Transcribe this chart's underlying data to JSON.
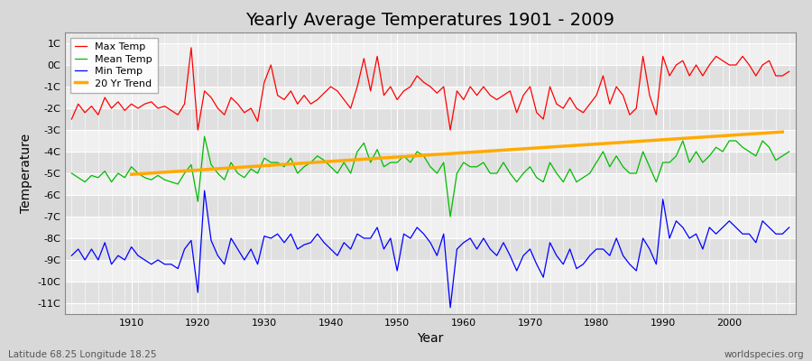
{
  "title": "Yearly Average Temperatures 1901 - 2009",
  "xlabel": "Year",
  "ylabel": "Temperature",
  "subtitle_left": "Latitude 68.25 Longitude 18.25",
  "subtitle_right": "worldspecies.org",
  "years": [
    1901,
    1902,
    1903,
    1904,
    1905,
    1906,
    1907,
    1908,
    1909,
    1910,
    1911,
    1912,
    1913,
    1914,
    1915,
    1916,
    1917,
    1918,
    1919,
    1920,
    1921,
    1922,
    1923,
    1924,
    1925,
    1926,
    1927,
    1928,
    1929,
    1930,
    1931,
    1932,
    1933,
    1934,
    1935,
    1936,
    1937,
    1938,
    1939,
    1940,
    1941,
    1942,
    1943,
    1944,
    1945,
    1946,
    1947,
    1948,
    1949,
    1950,
    1951,
    1952,
    1953,
    1954,
    1955,
    1956,
    1957,
    1958,
    1959,
    1960,
    1961,
    1962,
    1963,
    1964,
    1965,
    1966,
    1967,
    1968,
    1969,
    1970,
    1971,
    1972,
    1973,
    1974,
    1975,
    1976,
    1977,
    1978,
    1979,
    1980,
    1981,
    1982,
    1983,
    1984,
    1985,
    1986,
    1987,
    1988,
    1989,
    1990,
    1991,
    1992,
    1993,
    1994,
    1995,
    1996,
    1997,
    1998,
    1999,
    2000,
    2001,
    2002,
    2003,
    2004,
    2005,
    2006,
    2007,
    2008,
    2009
  ],
  "max_temp": [
    -2.5,
    -1.8,
    -2.2,
    -1.9,
    -2.3,
    -1.5,
    -2.0,
    -1.7,
    -2.1,
    -1.8,
    -2.0,
    -1.8,
    -1.7,
    -2.0,
    -1.9,
    -2.1,
    -2.3,
    -1.8,
    0.8,
    -3.0,
    -1.2,
    -1.5,
    -2.0,
    -2.3,
    -1.5,
    -1.8,
    -2.2,
    -2.0,
    -2.6,
    -0.8,
    0.0,
    -1.4,
    -1.6,
    -1.2,
    -1.8,
    -1.4,
    -1.8,
    -1.6,
    -1.3,
    -1.0,
    -1.2,
    -1.6,
    -2.0,
    -1.0,
    0.3,
    -1.2,
    0.4,
    -1.4,
    -1.0,
    -1.6,
    -1.2,
    -1.0,
    -0.5,
    -0.8,
    -1.0,
    -1.3,
    -1.0,
    -3.0,
    -1.2,
    -1.6,
    -1.0,
    -1.4,
    -1.0,
    -1.4,
    -1.6,
    -1.4,
    -1.2,
    -2.2,
    -1.4,
    -1.0,
    -2.2,
    -2.5,
    -1.0,
    -1.8,
    -2.0,
    -1.5,
    -2.0,
    -2.2,
    -1.8,
    -1.4,
    -0.5,
    -1.8,
    -1.0,
    -1.4,
    -2.3,
    -2.0,
    0.4,
    -1.4,
    -2.3,
    0.4,
    -0.5,
    0.0,
    0.2,
    -0.5,
    0.0,
    -0.5,
    0.0,
    0.4,
    0.2,
    0.0,
    0.0,
    0.4,
    0.0,
    -0.5,
    0.0,
    0.2,
    -0.5,
    -0.5,
    -0.3
  ],
  "mean_temp": [
    -5.0,
    -5.2,
    -5.4,
    -5.1,
    -5.2,
    -4.9,
    -5.4,
    -5.0,
    -5.2,
    -4.7,
    -5.0,
    -5.2,
    -5.3,
    -5.1,
    -5.3,
    -5.4,
    -5.5,
    -5.0,
    -4.6,
    -6.3,
    -3.3,
    -4.6,
    -5.0,
    -5.3,
    -4.5,
    -5.0,
    -5.2,
    -4.8,
    -5.0,
    -4.3,
    -4.5,
    -4.5,
    -4.7,
    -4.3,
    -5.0,
    -4.7,
    -4.5,
    -4.2,
    -4.4,
    -4.7,
    -5.0,
    -4.5,
    -5.0,
    -4.0,
    -3.6,
    -4.5,
    -3.9,
    -4.7,
    -4.5,
    -4.5,
    -4.2,
    -4.5,
    -4.0,
    -4.2,
    -4.7,
    -5.0,
    -4.5,
    -7.0,
    -5.0,
    -4.5,
    -4.7,
    -4.7,
    -4.5,
    -5.0,
    -5.0,
    -4.5,
    -5.0,
    -5.4,
    -5.0,
    -4.7,
    -5.2,
    -5.4,
    -4.5,
    -5.0,
    -5.4,
    -4.8,
    -5.4,
    -5.2,
    -5.0,
    -4.5,
    -4.0,
    -4.7,
    -4.2,
    -4.7,
    -5.0,
    -5.0,
    -4.0,
    -4.7,
    -5.4,
    -4.5,
    -4.5,
    -4.2,
    -3.5,
    -4.5,
    -4.0,
    -4.5,
    -4.2,
    -3.8,
    -4.0,
    -3.5,
    -3.5,
    -3.8,
    -4.0,
    -4.2,
    -3.5,
    -3.8,
    -4.4,
    -4.2,
    -4.0
  ],
  "min_temp": [
    -8.8,
    -8.5,
    -9.0,
    -8.5,
    -9.0,
    -8.2,
    -9.2,
    -8.8,
    -9.0,
    -8.4,
    -8.8,
    -9.0,
    -9.2,
    -9.0,
    -9.2,
    -9.2,
    -9.4,
    -8.5,
    -8.1,
    -10.5,
    -5.8,
    -8.1,
    -8.8,
    -9.2,
    -8.0,
    -8.5,
    -9.0,
    -8.5,
    -9.2,
    -7.9,
    -8.0,
    -7.8,
    -8.2,
    -7.8,
    -8.5,
    -8.3,
    -8.2,
    -7.8,
    -8.2,
    -8.5,
    -8.8,
    -8.2,
    -8.5,
    -7.8,
    -8.0,
    -8.0,
    -7.5,
    -8.5,
    -8.0,
    -9.5,
    -7.8,
    -8.0,
    -7.5,
    -7.8,
    -8.2,
    -8.8,
    -7.8,
    -11.2,
    -8.5,
    -8.2,
    -8.0,
    -8.5,
    -8.0,
    -8.5,
    -8.8,
    -8.2,
    -8.8,
    -9.5,
    -8.8,
    -8.5,
    -9.2,
    -9.8,
    -8.2,
    -8.8,
    -9.2,
    -8.5,
    -9.4,
    -9.2,
    -8.8,
    -8.5,
    -8.5,
    -8.8,
    -8.0,
    -8.8,
    -9.2,
    -9.5,
    -8.0,
    -8.5,
    -9.2,
    -6.2,
    -8.0,
    -7.2,
    -7.5,
    -8.0,
    -7.8,
    -8.5,
    -7.5,
    -7.8,
    -7.5,
    -7.2,
    -7.5,
    -7.8,
    -7.8,
    -8.2,
    -7.2,
    -7.5,
    -7.8,
    -7.8,
    -7.5
  ],
  "trend_start_year": 1910,
  "trend_end_year": 2008,
  "trend_values": [
    -5.05,
    -5.03,
    -5.01,
    -4.99,
    -4.97,
    -4.95,
    -4.93,
    -4.91,
    -4.89,
    -4.87,
    -4.85,
    -4.83,
    -4.81,
    -4.79,
    -4.77,
    -4.75,
    -4.73,
    -4.71,
    -4.69,
    -4.67,
    -4.65,
    -4.63,
    -4.61,
    -4.59,
    -4.57,
    -4.55,
    -4.53,
    -4.51,
    -4.49,
    -4.47,
    -4.45,
    -4.43,
    -4.41,
    -4.39,
    -4.37,
    -4.35,
    -4.33,
    -4.31,
    -4.29,
    -4.27,
    -4.25,
    -4.23,
    -4.21,
    -4.19,
    -4.17,
    -4.15,
    -4.13,
    -4.11,
    -4.09,
    -4.07,
    -4.05,
    -4.03,
    -4.01,
    -3.99,
    -3.97,
    -3.95,
    -3.93,
    -3.91,
    -3.89,
    -3.87,
    -3.85,
    -3.83,
    -3.81,
    -3.79,
    -3.77,
    -3.75,
    -3.73,
    -3.71,
    -3.69,
    -3.67,
    -3.65,
    -3.63,
    -3.61,
    -3.59,
    -3.57,
    -3.55,
    -3.53,
    -3.51,
    -3.49,
    -3.47,
    -3.45,
    -3.43,
    -3.41,
    -3.39,
    -3.37,
    -3.35,
    -3.33,
    -3.31,
    -3.29,
    -3.27,
    -3.25,
    -3.23,
    -3.21,
    -3.19,
    -3.17,
    -3.15,
    -3.13,
    -3.11,
    -3.09
  ],
  "ylim": [
    -11.5,
    1.5
  ],
  "yticks": [
    1,
    0,
    -1,
    -2,
    -3,
    -4,
    -5,
    -6,
    -7,
    -8,
    -9,
    -10,
    -11
  ],
  "ytick_labels": [
    "1C",
    "0C",
    "-1C",
    "-2C",
    "-3C",
    "-4C",
    "-5C",
    "-6C",
    "-7C",
    "-8C",
    "-9C",
    "-10C",
    "-11C"
  ],
  "xlim": [
    1900,
    2010
  ],
  "xticks": [
    1910,
    1920,
    1930,
    1940,
    1950,
    1960,
    1970,
    1980,
    1990,
    2000
  ],
  "max_color": "#ff0000",
  "mean_color": "#00bb00",
  "min_color": "#0000ff",
  "trend_color": "#ffaa00",
  "bg_color": "#d8d8d8",
  "plot_bg_color": "#e8e8e8",
  "band_color_light": "#f0f0f0",
  "band_color_dark": "#e0e0e0",
  "grid_line_color": "#ffffff",
  "title_fontsize": 14,
  "axis_label_fontsize": 10,
  "tick_fontsize": 8,
  "legend_fontsize": 8
}
